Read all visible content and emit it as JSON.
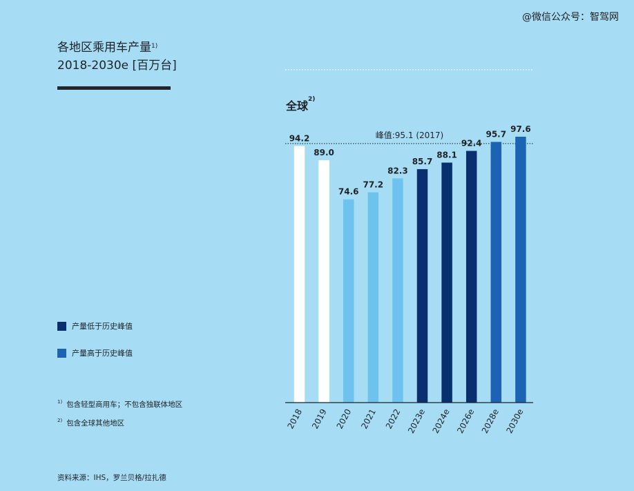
{
  "watermark": "@微信公众号：智驾网",
  "title_line1": "各地区乘用车产量",
  "title_note": "1)",
  "title_line2": "2018-2030e [百万台]",
  "region_label": "全球",
  "region_note": "2)",
  "legend": [
    {
      "label": "产量低于历史峰值",
      "color": "#0a2f6e"
    },
    {
      "label": "产量高于历史峰值",
      "color": "#1c63b4"
    }
  ],
  "notes": [
    {
      "mark": "1)",
      "text": "包含轻型商用车；不包含独联体地区"
    },
    {
      "mark": "2)",
      "text": "包含全球其他地区"
    }
  ],
  "source": "资料来源：IHS，罗兰贝格/拉扎德",
  "colors": {
    "historical_peak_years": "#ffffff",
    "recovery_years": "#6ec3ee",
    "below_peak": "#0a2f6e",
    "above_peak": "#1c63b4",
    "background": "#a6dcf4"
  },
  "chart_data": {
    "type": "bar",
    "categories": [
      "2018",
      "2019",
      "2020",
      "2021",
      "2022",
      "2023e",
      "2024e",
      "2026e",
      "2028e",
      "2030e"
    ],
    "values": [
      94.2,
      89.0,
      74.6,
      77.2,
      82.3,
      85.7,
      88.1,
      92.4,
      95.7,
      97.6
    ],
    "value_labels": [
      "94.2",
      "89.0",
      "74.6",
      "77.2",
      "82.3",
      "85.7",
      "88.1",
      "92.4",
      "95.7",
      "97.6"
    ],
    "bar_colors": [
      "#ffffff",
      "#ffffff",
      "#6ec3ee",
      "#6ec3ee",
      "#6ec3ee",
      "#0a2f6e",
      "#0a2f6e",
      "#0a2f6e",
      "#1c63b4",
      "#1c63b4"
    ],
    "ylim": [
      0,
      97.6
    ],
    "reference_line": {
      "value": 95.1,
      "label": "峰值:95.1 (2017)"
    },
    "title": "全球",
    "xlabel": "",
    "ylabel": "",
    "grid": false,
    "legend_position": "left"
  }
}
